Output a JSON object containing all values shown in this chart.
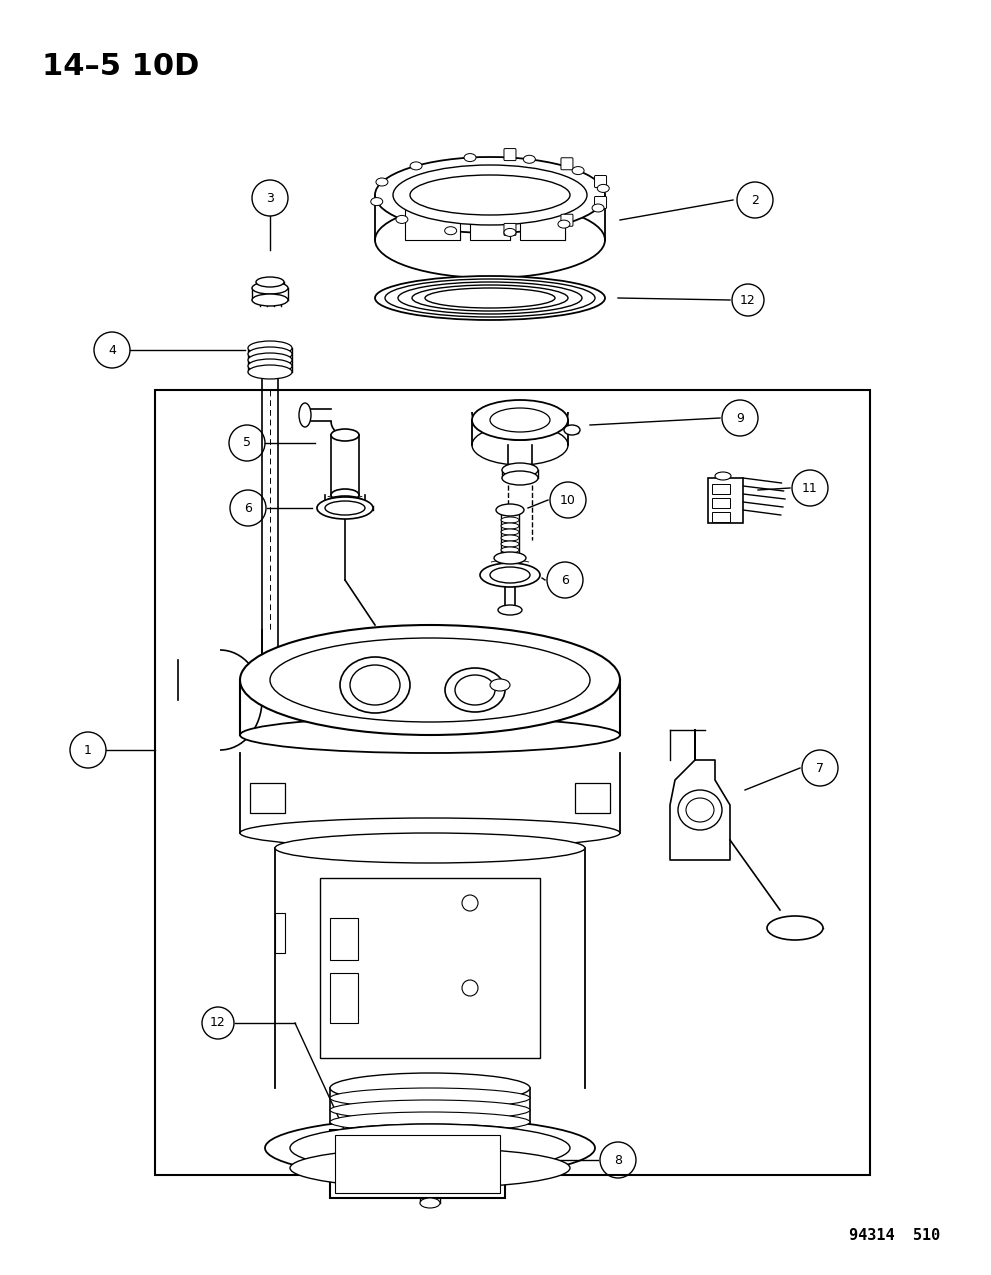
{
  "title": "14–5 10D",
  "ref_number": "94314  510",
  "bg_color": "#ffffff",
  "lc": "#000000",
  "fig_width": 9.91,
  "fig_height": 12.75,
  "dpi": 100
}
